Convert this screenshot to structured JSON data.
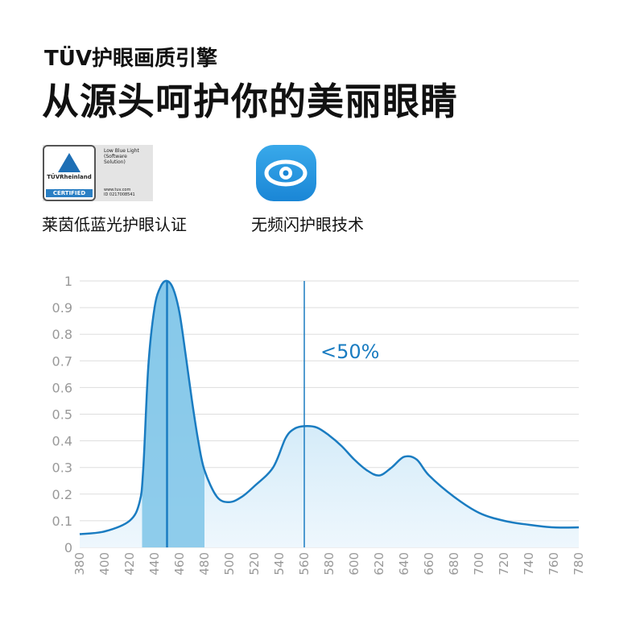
{
  "header": {
    "subtitle": "TÜV护眼画质引擎",
    "title": "从源头呵护你的美丽眼睛"
  },
  "certs": [
    {
      "label": "莱茵低蓝光护眼认证",
      "badge": {
        "brand": "TÜVRheinland",
        "certified": "CERTIFIED",
        "line1": "Low Blue Light",
        "line2": "(Software",
        "line3": "Solution)",
        "site": "www.tuv.com",
        "id": "ID 0217008541"
      }
    },
    {
      "label": "无频闪护眼技术",
      "icon": "eye-icon"
    }
  ],
  "colors": {
    "accent": "#1a7cc1",
    "fill_dark": "#7ec4e8",
    "fill_light": "#e3f2fb"
  },
  "chart_data": {
    "type": "area",
    "xlim": [
      380,
      780
    ],
    "ylim": [
      0,
      1
    ],
    "grid": true,
    "xticks": [
      380,
      400,
      420,
      440,
      460,
      480,
      500,
      520,
      540,
      560,
      580,
      600,
      620,
      640,
      660,
      680,
      700,
      720,
      740,
      760,
      780
    ],
    "yticks": [
      "0",
      "0.1",
      "0.2",
      "0.3",
      "0.4",
      "0.5",
      "0.6",
      "0.7",
      "0.8",
      "0.9",
      "1"
    ],
    "x": [
      380,
      400,
      420,
      428,
      431,
      435,
      440,
      445,
      450,
      455,
      460,
      465,
      470,
      475,
      480,
      490,
      500,
      510,
      520,
      535,
      545,
      552,
      560,
      570,
      580,
      590,
      600,
      610,
      620,
      630,
      640,
      650,
      660,
      680,
      700,
      720,
      740,
      760,
      780
    ],
    "y": [
      0.05,
      0.06,
      0.1,
      0.17,
      0.3,
      0.68,
      0.9,
      0.98,
      1.0,
      0.97,
      0.88,
      0.72,
      0.55,
      0.4,
      0.29,
      0.19,
      0.17,
      0.19,
      0.23,
      0.3,
      0.41,
      0.445,
      0.455,
      0.45,
      0.42,
      0.38,
      0.33,
      0.29,
      0.27,
      0.3,
      0.34,
      0.33,
      0.27,
      0.19,
      0.13,
      0.1,
      0.085,
      0.075,
      0.075
    ],
    "highlight_band": [
      430,
      480
    ],
    "vlines": [
      450,
      560
    ],
    "annotation": "<50%"
  }
}
